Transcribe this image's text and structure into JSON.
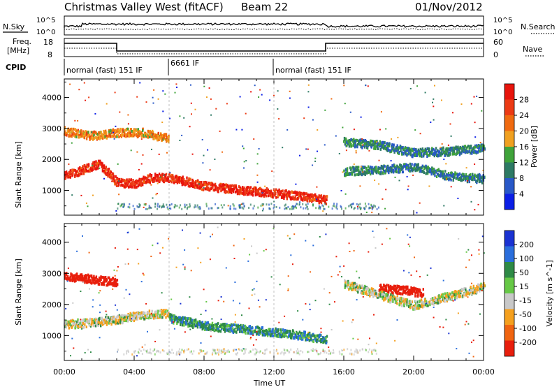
{
  "header": {
    "station": "Christmas Valley West (fitACF)",
    "beam": "Beam 22",
    "date": "01/Nov/2012"
  },
  "panels": {
    "nsky": {
      "label": "N.Sky",
      "right_label": "N.Search",
      "tick_top": "10^5",
      "tick_bottom": "10^0",
      "right_tick_top": "10^5",
      "right_tick_bottom": "10^0"
    },
    "freq": {
      "label_line1": "Freq.",
      "label_line2": "[MHz]",
      "right_label": "Nave",
      "tick_top": "18",
      "tick_bottom": "8",
      "right_tick_top": "60",
      "right_tick_bottom": "0"
    },
    "cpid": {
      "label": "CPID",
      "segments": [
        "normal (fast) 151 IF",
        "6661 IF",
        "normal (fast) 151 IF"
      ]
    }
  },
  "chart_data": [
    {
      "type": "heatmap",
      "title": "",
      "xlabel": "Time UT",
      "ylabel": "Slant Range [km]",
      "x_ticks": [
        "00:00",
        "04:00",
        "08:00",
        "12:00",
        "16:00",
        "20:00",
        "00:00"
      ],
      "y_ticks": [
        "1000",
        "2000",
        "3000",
        "4000"
      ],
      "ylim": [
        200,
        4600
      ],
      "colorbar": {
        "label": "Power [dB]",
        "ticks": [
          "4",
          "8",
          "12",
          "16",
          "20",
          "24",
          "28"
        ],
        "range": [
          0,
          32
        ],
        "colors": [
          "#0a1ee6",
          "#2858c8",
          "#2d7a64",
          "#3fa33a",
          "#f0a020",
          "#f06a10",
          "#ec3a14",
          "#e8140c"
        ]
      },
      "features": [
        {
          "t": [
            0.0,
            1.0,
            2.0,
            3.0,
            4.0,
            5.0,
            6.0,
            8.0,
            10.0,
            12.0,
            13.5,
            15.0
          ],
          "range_km": [
            1500,
            1700,
            1900,
            1300,
            1250,
            1450,
            1450,
            1180,
            1050,
            950,
            850,
            720
          ],
          "value_db": 28
        },
        {
          "t": [
            0.0,
            1.5,
            3.0,
            4.5,
            6.0
          ],
          "range_km": [
            2950,
            2800,
            2900,
            2900,
            2700
          ],
          "value_db": 20
        },
        {
          "t": [
            16.0,
            18.0,
            20.0,
            22.0,
            24.0
          ],
          "range_km": [
            2600,
            2500,
            2250,
            2300,
            2400
          ],
          "value_db": 10
        },
        {
          "t": [
            16.0,
            18.0,
            20.0,
            22.0,
            24.0
          ],
          "range_km": [
            1650,
            1700,
            1800,
            1500,
            1400
          ],
          "value_db": 10
        }
      ]
    },
    {
      "type": "heatmap",
      "title": "",
      "xlabel": "Time UT",
      "ylabel": "Slant Range [km]",
      "x_ticks": [
        "00:00",
        "04:00",
        "08:00",
        "12:00",
        "16:00",
        "20:00",
        "00:00"
      ],
      "y_ticks": [
        "1000",
        "2000",
        "3000",
        "4000"
      ],
      "ylim": [
        200,
        4600
      ],
      "colorbar": {
        "label": "Velocity [m s^-1]",
        "ticks": [
          "200",
          "100",
          "50",
          "15",
          "-15",
          "-50",
          "-100",
          "-200"
        ],
        "range": [
          -250,
          250
        ],
        "colors": [
          "#1a32d2",
          "#2a6edc",
          "#2e8a46",
          "#66c846",
          "#c8c8c8",
          "#f5a01e",
          "#f06410",
          "#e81e0c"
        ]
      },
      "features": [
        {
          "t": [
            0.0,
            1.5,
            3.0,
            4.5,
            6.0
          ],
          "range_km": [
            1400,
            1450,
            1550,
            1700,
            1750
          ],
          "value_ms": 0
        },
        {
          "t": [
            6.0,
            8.0,
            10.0,
            12.0,
            13.5,
            15.0
          ],
          "range_km": [
            1600,
            1350,
            1250,
            1150,
            1050,
            900
          ],
          "value_ms": 60
        },
        {
          "t": [
            0.0,
            1.5,
            3.0
          ],
          "range_km": [
            2950,
            2850,
            2750
          ],
          "value_ms": -200
        },
        {
          "t": [
            18.0,
            19.5,
            20.5
          ],
          "range_km": [
            2550,
            2500,
            2400
          ],
          "value_ms": -200
        },
        {
          "t": [
            16.0,
            20.0,
            24.0
          ],
          "range_km": [
            2700,
            2000,
            2600
          ],
          "value_ms": 0
        }
      ]
    }
  ]
}
